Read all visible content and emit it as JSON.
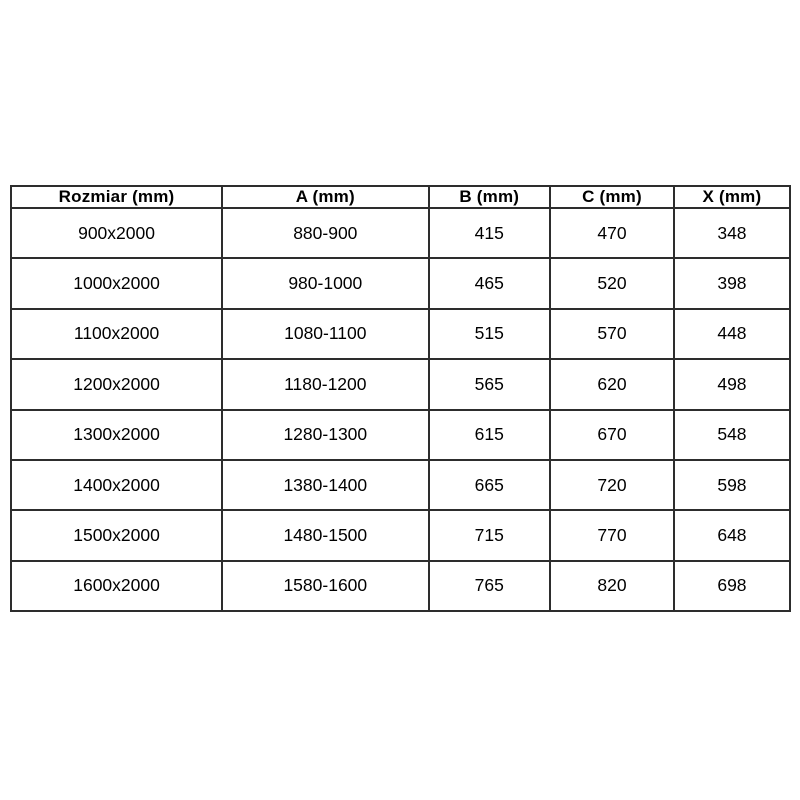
{
  "table": {
    "columns": [
      {
        "key": "rozmiar",
        "label": "Rozmiar (mm)"
      },
      {
        "key": "a",
        "label": "A (mm)"
      },
      {
        "key": "b",
        "label": "B (mm)"
      },
      {
        "key": "c",
        "label": "C (mm)"
      },
      {
        "key": "x",
        "label": "X (mm)"
      }
    ],
    "rows": [
      [
        "900x2000",
        "880-900",
        "415",
        "470",
        "348"
      ],
      [
        "1000x2000",
        "980-1000",
        "465",
        "520",
        "398"
      ],
      [
        "1100x2000",
        "1080-1100",
        "515",
        "570",
        "448"
      ],
      [
        "1200x2000",
        "1180-1200",
        "565",
        "620",
        "498"
      ],
      [
        "1300x2000",
        "1280-1300",
        "615",
        "670",
        "548"
      ],
      [
        "1400x2000",
        "1380-1400",
        "665",
        "720",
        "598"
      ],
      [
        "1500x2000",
        "1480-1500",
        "715",
        "770",
        "648"
      ],
      [
        "1600x2000",
        "1580-1600",
        "765",
        "820",
        "698"
      ]
    ],
    "colors": {
      "border": "#2d2d2d",
      "text": "#000000",
      "background": "#ffffff"
    }
  }
}
